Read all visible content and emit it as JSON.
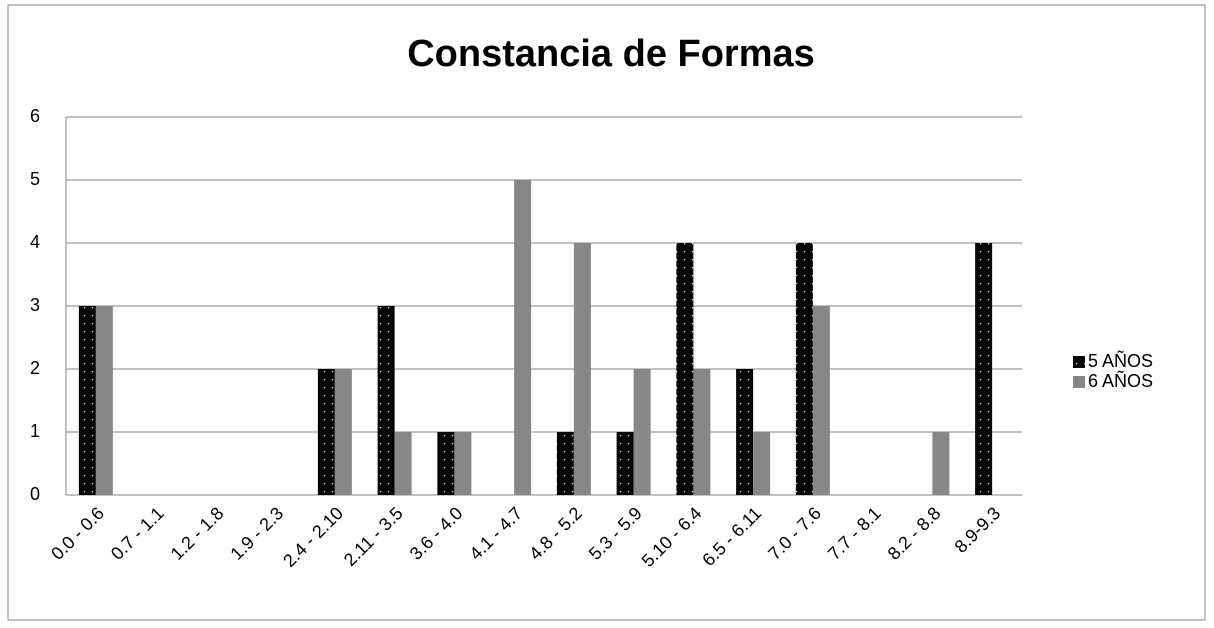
{
  "chart_data": {
    "type": "bar",
    "title": "Constancia de Formas",
    "categories": [
      "0.0 - 0.6",
      "0.7 - 1.1",
      "1.2 - 1.8",
      "1.9 - 2.3",
      "2.4 - 2.10",
      "2.11 - 3.5",
      "3.6 - 4.0",
      "4.1 - 4.7",
      "4.8 - 5.2",
      "5.3 - 5.9",
      "5.10 - 6.4",
      "6.5 - 6.11",
      "7.0 - 7.6",
      "7.7 - 8.1",
      "8.2 - 8.8",
      "8.9-9.3"
    ],
    "series": [
      {
        "name": "5 AÑOS",
        "color": "#000000",
        "values": [
          3,
          0,
          0,
          0,
          2,
          3,
          1,
          0,
          1,
          1,
          4,
          2,
          4,
          0,
          0,
          4
        ]
      },
      {
        "name": "6 AÑOS",
        "color": "#878787",
        "values": [
          3,
          0,
          0,
          0,
          2,
          1,
          1,
          5,
          4,
          2,
          2,
          1,
          3,
          0,
          1,
          0
        ]
      }
    ],
    "ylim": [
      0,
      6
    ],
    "yticks": [
      0,
      1,
      2,
      3,
      4,
      5,
      6
    ],
    "grid": true,
    "legend": "right"
  }
}
